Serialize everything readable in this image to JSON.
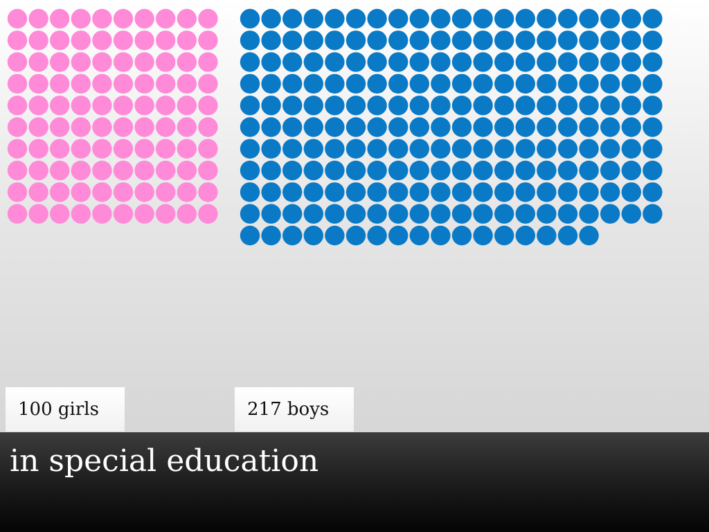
{
  "colors": {
    "girls": "#ff8ad8",
    "boys": "#0a7ac6"
  },
  "chart_data": {
    "type": "pictogram",
    "unit": "dot",
    "series": [
      {
        "name": "girls",
        "count": 100,
        "label": "100 girls"
      },
      {
        "name": "boys",
        "count": 217,
        "label": "217 boys"
      }
    ]
  },
  "caption": "in special education"
}
